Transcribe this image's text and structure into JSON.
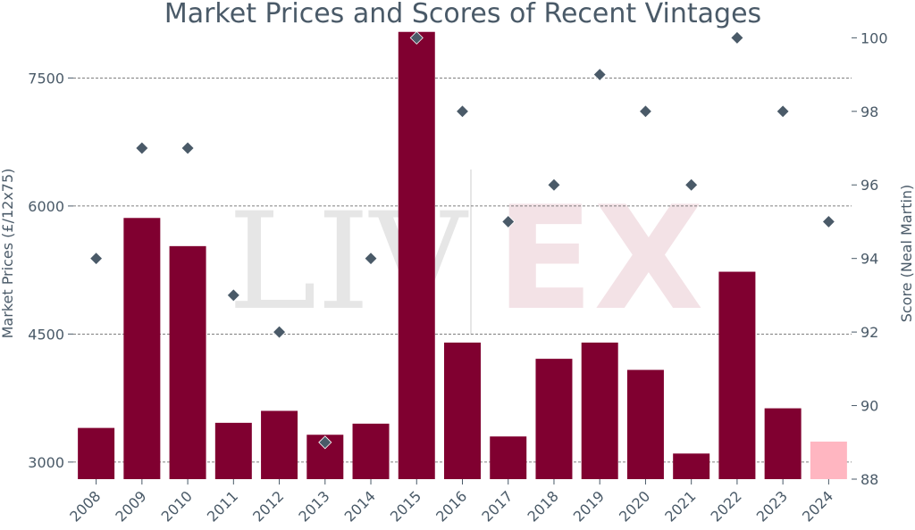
{
  "chart_data": {
    "type": "bar",
    "title": "Market Prices and Scores of Recent Vintages",
    "categories": [
      "2008",
      "2009",
      "2010",
      "2011",
      "2012",
      "2013",
      "2014",
      "2015",
      "2016",
      "2017",
      "2018",
      "2019",
      "2020",
      "2021",
      "2022",
      "2023",
      "2024"
    ],
    "series": [
      {
        "name": "Market Prices (£/12x75)",
        "kind": "bar",
        "axis": "left",
        "values": [
          3400,
          5860,
          5530,
          3460,
          3600,
          3320,
          3450,
          8040,
          4400,
          3300,
          4210,
          4400,
          4080,
          3100,
          5230,
          3630,
          3240
        ],
        "color": "#800030",
        "highlight": {
          "index": 16,
          "color": "#ffb6c1"
        }
      },
      {
        "name": "Score (Neal Martin)",
        "kind": "scatter",
        "axis": "right",
        "marker": "diamond",
        "values": [
          94,
          97,
          97,
          93,
          92,
          89,
          94,
          100,
          98,
          95,
          96,
          99,
          98,
          96,
          100,
          98,
          95
        ],
        "color": "#4a5a68"
      }
    ],
    "ylabel": "Market Prices (£/12x75)",
    "ylabel_right": "Score (Neal Martin)",
    "ylim": [
      2800,
      8100
    ],
    "ylim_right": [
      88,
      100.3
    ],
    "yticks": [
      3000,
      4500,
      6000,
      7500
    ],
    "yticks_right": [
      88,
      90,
      92,
      94,
      96,
      98,
      100
    ],
    "grid": "horizontal dashed",
    "watermark": {
      "left": "LIV",
      "right": "EX"
    }
  }
}
